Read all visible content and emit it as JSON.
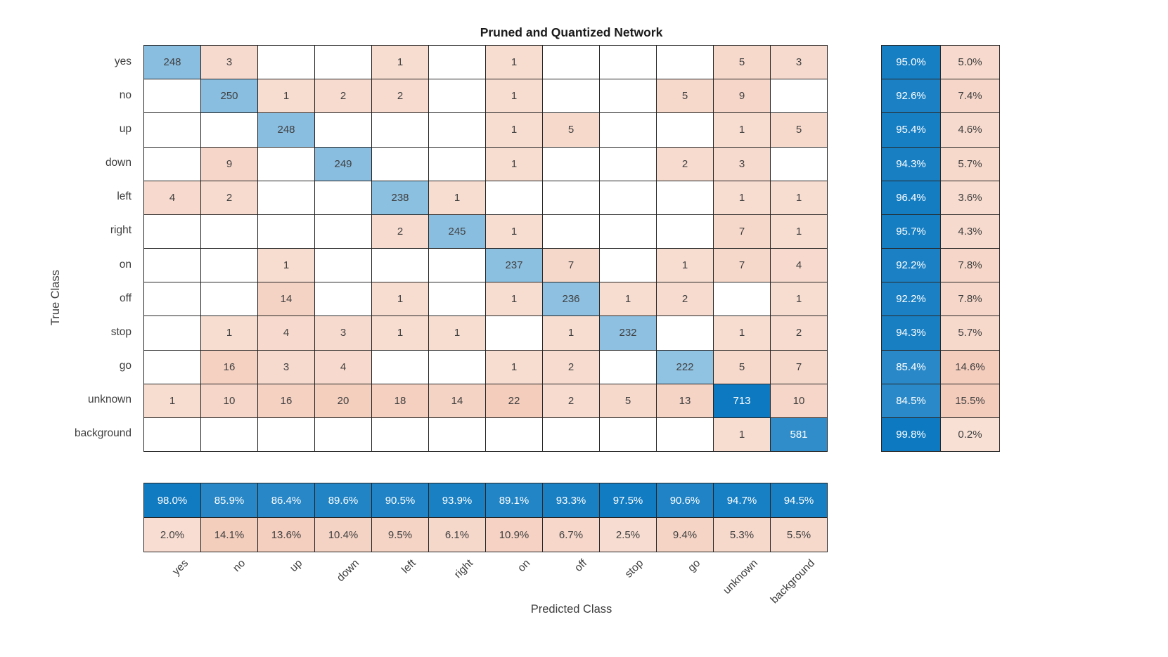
{
  "chart_data": {
    "type": "heatmap",
    "subtype": "confusion-matrix",
    "title": "Pruned and Quantized Network",
    "xlabel": "Predicted Class",
    "ylabel": "True Class",
    "classes": [
      "yes",
      "no",
      "up",
      "down",
      "left",
      "right",
      "on",
      "off",
      "stop",
      "go",
      "unknown",
      "background"
    ],
    "matrix": [
      [
        248,
        3,
        null,
        null,
        1,
        null,
        1,
        null,
        null,
        null,
        5,
        3
      ],
      [
        null,
        250,
        1,
        2,
        2,
        null,
        1,
        null,
        null,
        5,
        9,
        null
      ],
      [
        null,
        null,
        248,
        null,
        null,
        null,
        1,
        5,
        null,
        null,
        1,
        5
      ],
      [
        null,
        9,
        null,
        249,
        null,
        null,
        1,
        null,
        null,
        2,
        3,
        null
      ],
      [
        4,
        2,
        null,
        null,
        238,
        1,
        null,
        null,
        null,
        null,
        1,
        1
      ],
      [
        null,
        null,
        null,
        null,
        2,
        245,
        1,
        null,
        null,
        null,
        7,
        1
      ],
      [
        null,
        null,
        1,
        null,
        null,
        null,
        237,
        7,
        null,
        1,
        7,
        4
      ],
      [
        null,
        null,
        14,
        null,
        1,
        null,
        1,
        236,
        1,
        2,
        null,
        1
      ],
      [
        null,
        1,
        4,
        3,
        1,
        1,
        null,
        1,
        232,
        null,
        1,
        2
      ],
      [
        null,
        16,
        3,
        4,
        null,
        null,
        1,
        2,
        null,
        222,
        5,
        7
      ],
      [
        1,
        10,
        16,
        20,
        18,
        14,
        22,
        2,
        5,
        13,
        713,
        10
      ],
      [
        null,
        null,
        null,
        null,
        null,
        null,
        null,
        null,
        null,
        null,
        1,
        581
      ]
    ],
    "row_summary": {
      "positive": [
        "95.0%",
        "92.6%",
        "95.4%",
        "94.3%",
        "96.4%",
        "95.7%",
        "92.2%",
        "92.2%",
        "94.3%",
        "85.4%",
        "84.5%",
        "99.8%"
      ],
      "negative": [
        "5.0%",
        "7.4%",
        "4.6%",
        "5.7%",
        "3.6%",
        "4.3%",
        "7.8%",
        "7.8%",
        "5.7%",
        "14.6%",
        "15.5%",
        "0.2%"
      ]
    },
    "col_summary": {
      "positive": [
        "98.0%",
        "85.9%",
        "86.4%",
        "89.6%",
        "90.5%",
        "93.9%",
        "89.1%",
        "93.3%",
        "97.5%",
        "90.6%",
        "94.7%",
        "94.5%"
      ],
      "negative": [
        "2.0%",
        "14.1%",
        "13.6%",
        "10.4%",
        "9.5%",
        "6.1%",
        "10.9%",
        "6.7%",
        "2.5%",
        "9.4%",
        "5.3%",
        "5.5%"
      ]
    },
    "layout": {
      "row_summary_position": "right",
      "col_summary_position": "bottom",
      "xtick_rotation_deg": -45,
      "legend": "none"
    },
    "colors": {
      "diagonal_base": "#0072BD",
      "offdiagonal_base": "#D95319",
      "empty_cell": "#FFFFFF",
      "grid_line": "#262626",
      "cell_text_dark": "#404040",
      "cell_text_light": "#FFFFFF",
      "title_color": "#1A1A1A",
      "axis_text_color": "#3D3D3D"
    }
  }
}
